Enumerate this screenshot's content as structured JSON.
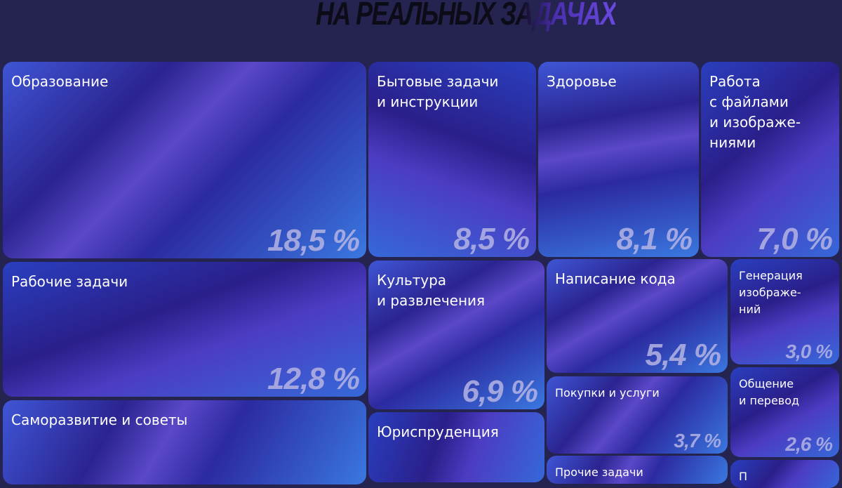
{
  "title": "НА РЕАЛЬНЫХ ЗАДАЧАХ",
  "colors": {
    "background": "#25234f",
    "tile_dark": "#2a1f8a",
    "tile_light": "#3d5fe0",
    "value_text": "#b6b4e4"
  },
  "chart_data": {
    "type": "treemap",
    "title": "НА РЕАЛЬНЫХ ЗАДАЧАХ",
    "items": [
      {
        "label": "Образование",
        "value": "18,5 %"
      },
      {
        "label": "Рабочие задачи",
        "value": "12,8 %"
      },
      {
        "label": "Саморазвитие и советы",
        "value": ""
      },
      {
        "label": "Бытовые задачи\nи инструкции",
        "value": "8,5 %"
      },
      {
        "label": "Культура\nи развлечения",
        "value": "6,9 %"
      },
      {
        "label": "Юриспруденция",
        "value": ""
      },
      {
        "label": "Здоровье",
        "value": "8,1 %"
      },
      {
        "label": "Работа\nс файлами\nи изображе-\nниями",
        "value": "7,0 %"
      },
      {
        "label": "Написание кода",
        "value": "5,4 %"
      },
      {
        "label": "Генерация\nизображе-\nний",
        "value": "3,0 %"
      },
      {
        "label": "Покупки и услуги",
        "value": "3,7 %"
      },
      {
        "label": "Общение\nи перевод",
        "value": "2,6 %"
      },
      {
        "label": "Прочие задачи",
        "value": ""
      },
      {
        "label": "П",
        "value": ""
      }
    ]
  }
}
